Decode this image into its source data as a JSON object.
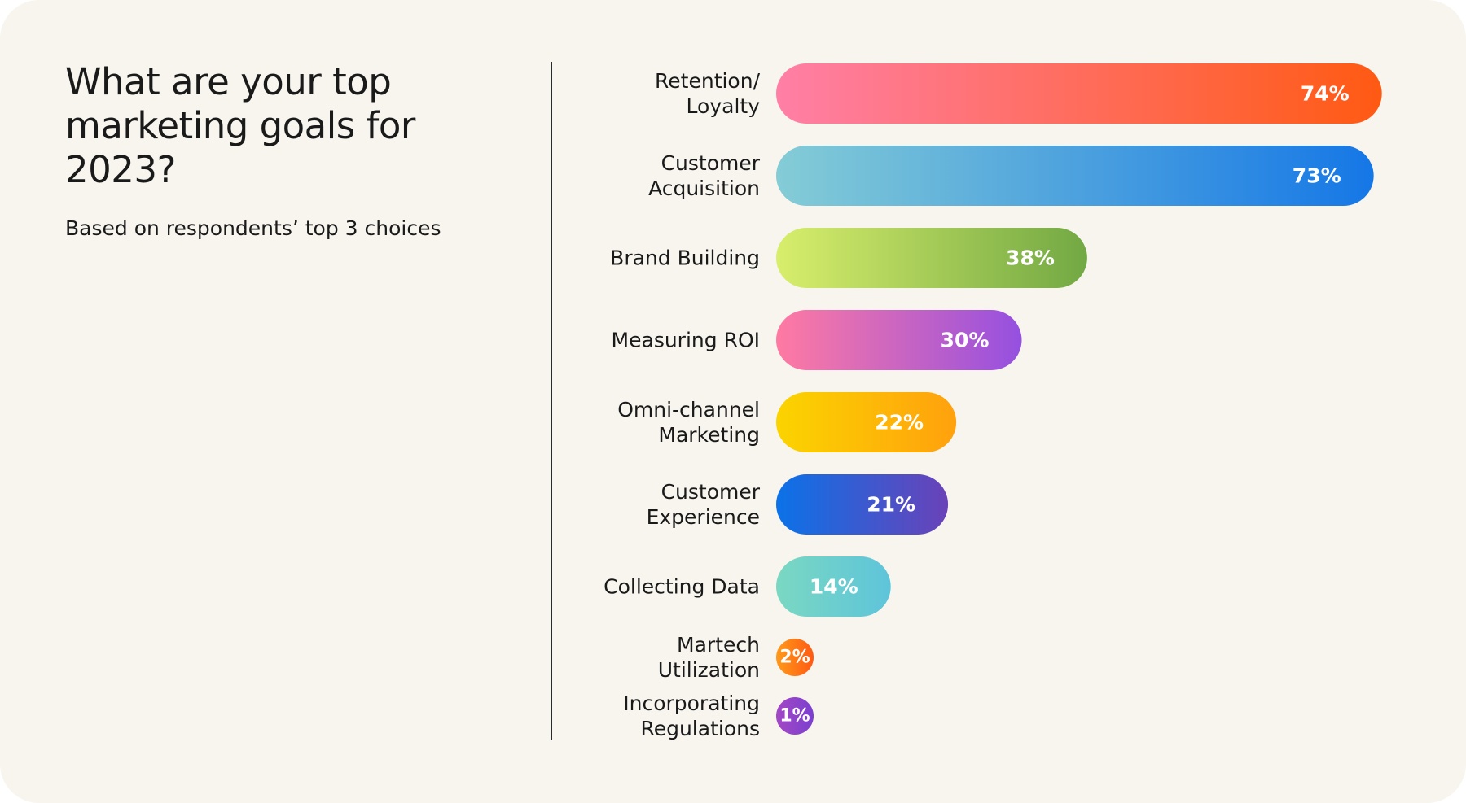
{
  "header": {
    "title": "What are your top marketing goals for 2023?",
    "subtitle": "Based on respondents’ top 3 choices"
  },
  "chart_data": {
    "type": "bar",
    "orientation": "horizontal",
    "title": "What are your top marketing goals for 2023?",
    "subtitle": "Based on respondents’ top 3 choices",
    "xlabel": "",
    "ylabel": "",
    "value_suffix": "%",
    "xlim": [
      0,
      80
    ],
    "grid": false,
    "categories": [
      [
        "Retention/",
        "Loyalty"
      ],
      [
        "Customer",
        "Acquisition"
      ],
      [
        "Brand Building"
      ],
      [
        "Measuring ROI"
      ],
      [
        "Omni-channel",
        "Marketing"
      ],
      [
        "Customer",
        "Experience"
      ],
      [
        "Collecting Data"
      ],
      [
        "Martech",
        "Utilization"
      ],
      [
        "Incorporating",
        "Regulations"
      ]
    ],
    "values": [
      74,
      73,
      38,
      30,
      22,
      21,
      14,
      2,
      1
    ],
    "colors": [
      [
        "#ff7fa6",
        "#ff5a13"
      ],
      [
        "#84ccd6",
        "#1577e6"
      ],
      [
        "#d8ee6c",
        "#72a843"
      ],
      [
        "#ff7aa2",
        "#9550e0"
      ],
      [
        "#fbd400",
        "#ffa10d"
      ],
      [
        "#0b72e8",
        "#6a42b8"
      ],
      [
        "#7ad8c2",
        "#5ec4da"
      ],
      [
        "#ff9a1a",
        "#ff5a13"
      ],
      [
        "#a348c4",
        "#7b3fcf"
      ]
    ]
  }
}
